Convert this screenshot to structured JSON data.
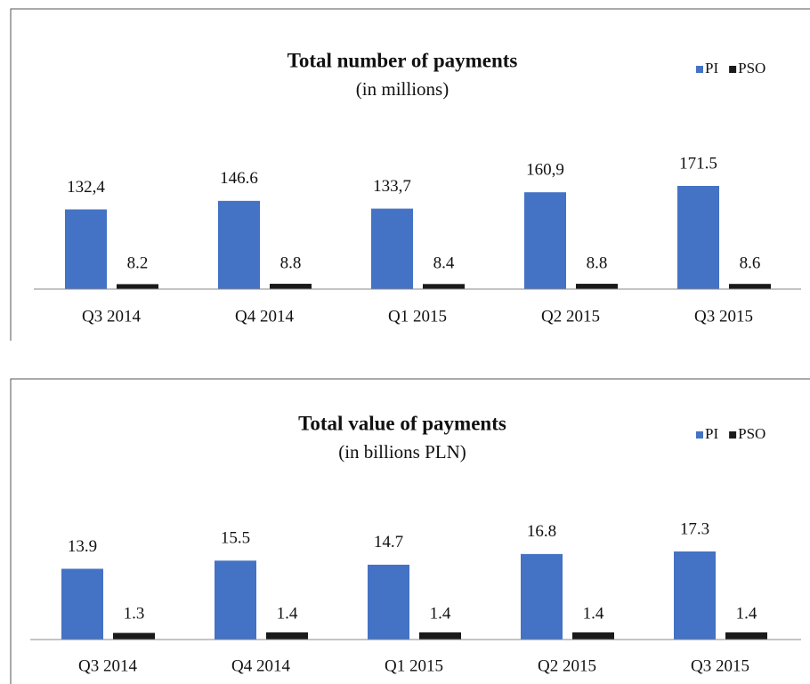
{
  "chart_data": [
    {
      "type": "bar",
      "title": "Total number  of payments",
      "subtitle": "(in millions)",
      "categories": [
        "Q3 2014",
        "Q4 2014",
        "Q1 2015",
        "Q2 2015",
        "Q3 2015"
      ],
      "series": [
        {
          "name": "PI",
          "color": "#4472c4",
          "values": [
            132.4,
            146.6,
            133.7,
            160.9,
            171.5
          ],
          "value_labels": [
            "132,4",
            "146.6",
            "133,7",
            "160,9",
            "171.5"
          ]
        },
        {
          "name": "PSO",
          "color": "#1a1a1a",
          "values": [
            8.2,
            8.8,
            8.4,
            8.8,
            8.6
          ]
        }
      ],
      "legend": "upper right"
    },
    {
      "type": "bar",
      "title": "Total value of payments",
      "subtitle": "(in billions  PLN)",
      "categories": [
        "Q3 2014",
        "Q4 2014",
        "Q1 2015",
        "Q2 2015",
        "Q3 2015"
      ],
      "series": [
        {
          "name": "PI",
          "color": "#4472c4",
          "values": [
            13.9,
            15.5,
            14.7,
            16.8,
            17.3
          ]
        },
        {
          "name": "PSO",
          "color": "#1a1a1a",
          "values": [
            1.3,
            1.4,
            1.4,
            1.4,
            1.4
          ]
        }
      ],
      "legend": "upper right"
    }
  ]
}
